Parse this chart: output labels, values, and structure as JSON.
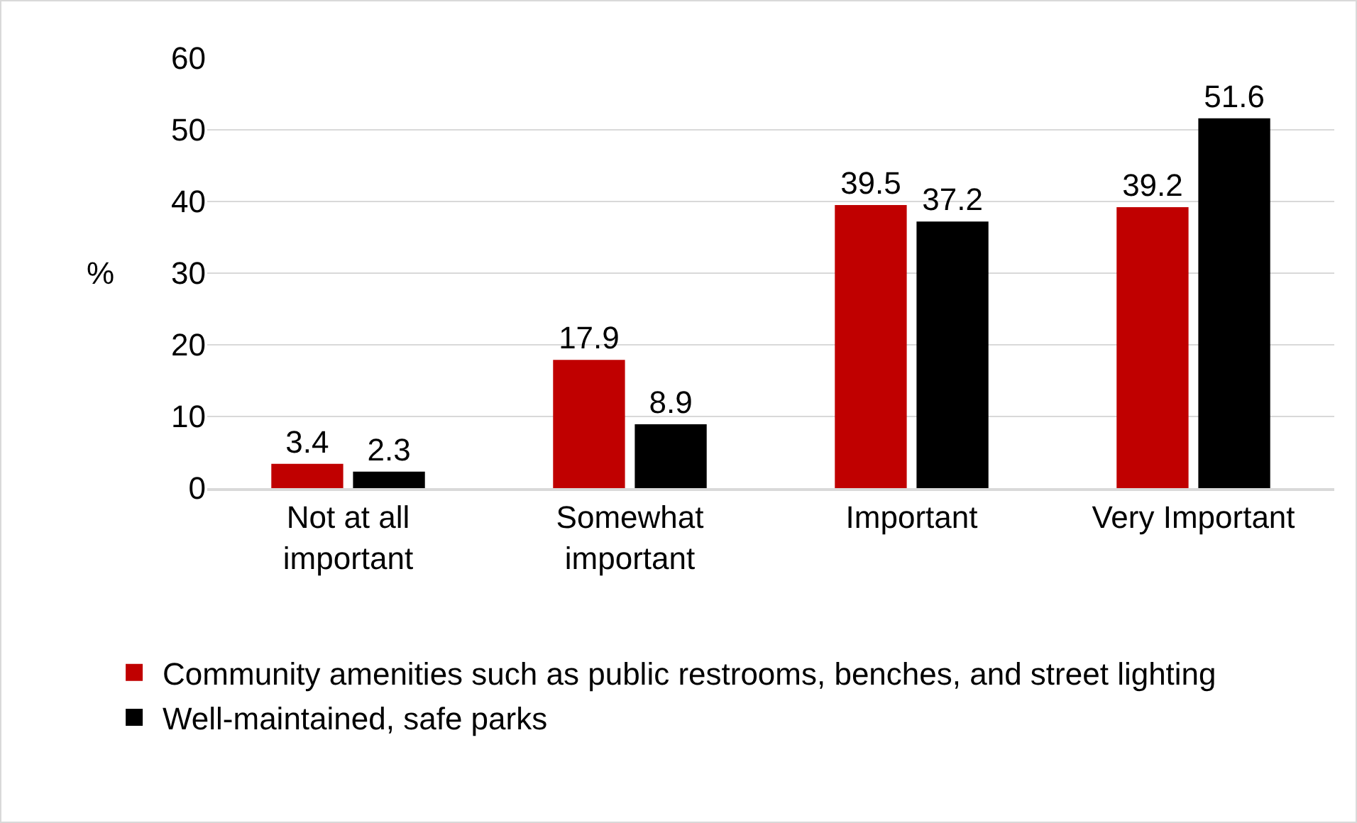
{
  "chart_data": {
    "type": "bar",
    "ylabel": "%",
    "categories": [
      "Not at all important",
      "Somewhat important",
      "Important",
      "Very Important"
    ],
    "series": [
      {
        "name": "Community amenities such as public restrooms, benches, and street lighting",
        "color": "#c00000",
        "values": [
          3.4,
          17.9,
          39.5,
          39.2
        ]
      },
      {
        "name": "Well-maintained, safe parks",
        "color": "#000000",
        "values": [
          2.3,
          8.9,
          37.2,
          51.6
        ]
      }
    ],
    "ylim": [
      0,
      60
    ],
    "yticks": [
      0,
      10,
      20,
      30,
      40,
      50,
      60
    ],
    "grid": "y",
    "legend": "bottom",
    "data_labels": true
  }
}
